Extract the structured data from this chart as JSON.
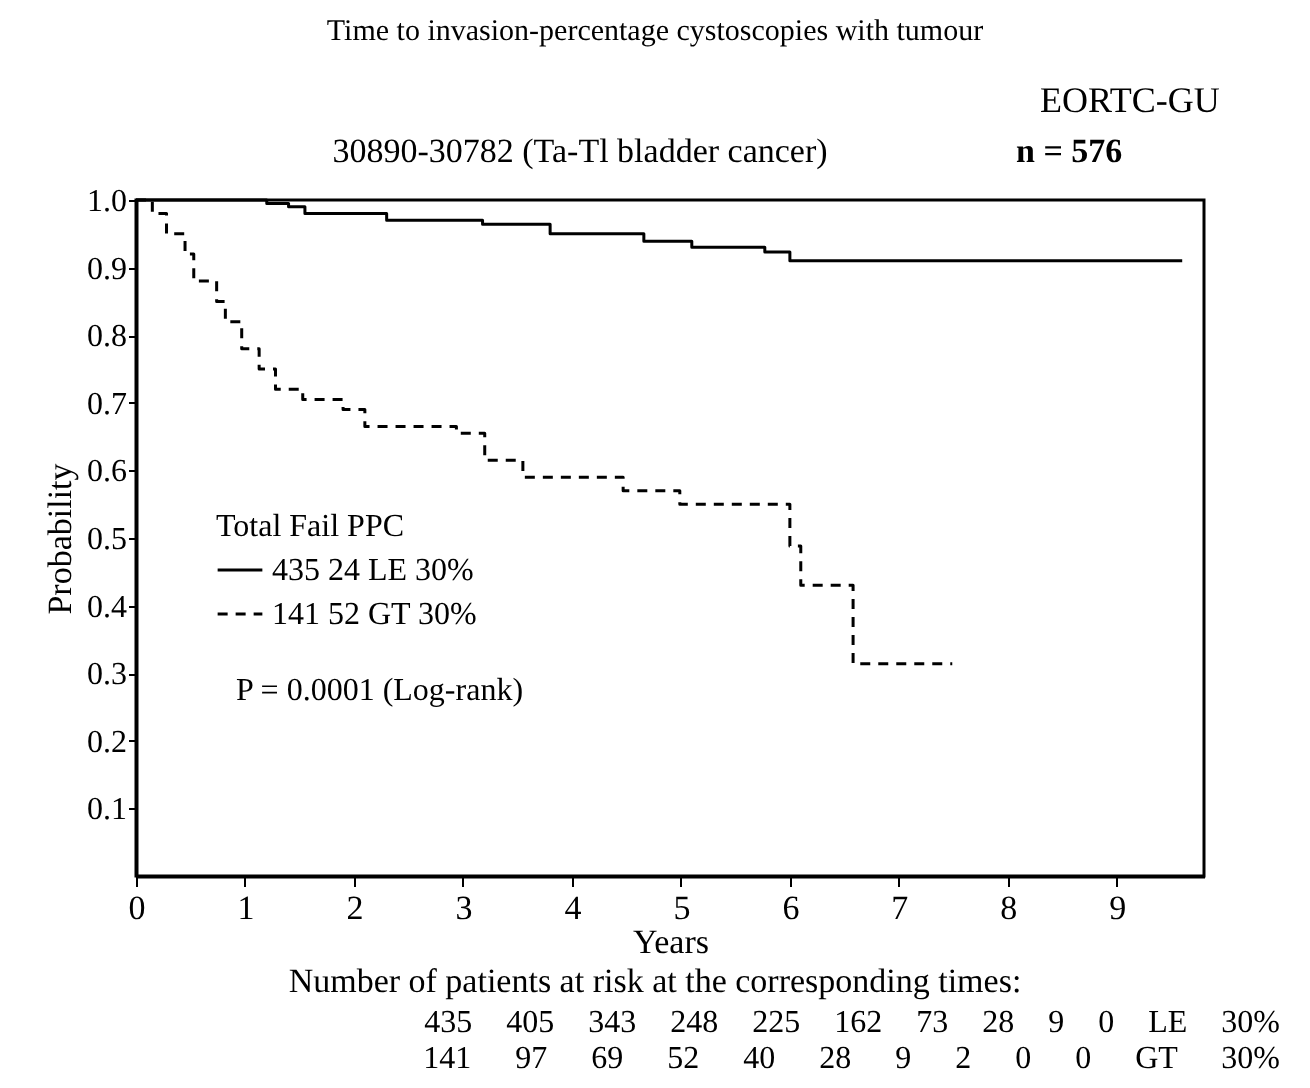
{
  "chart_data": {
    "type": "step",
    "title": "Time to invasion-percentage cystoscopies with tumour",
    "subtitle": "30890-30782 (Ta-Tl bladder cancer)",
    "xlabel": "Years",
    "ylabel": "Probability",
    "legend_title": "Total  Fail   PPC",
    "legend": "bottom left",
    "marker": "none",
    "grid": false,
    "xlim": [
      0,
      9.8
    ],
    "xticks": [
      0,
      1,
      2,
      3,
      4,
      5,
      6,
      7,
      8,
      9
    ],
    "ylim": [
      0,
      1
    ],
    "yticks": [
      {
        "value": 0.1,
        "label": "0.1"
      },
      {
        "value": 0.2,
        "label": "0.2"
      },
      {
        "value": 0.3,
        "label": "0.3"
      },
      {
        "value": 0.4,
        "label": "0.4"
      },
      {
        "value": 0.5,
        "label": "0.5"
      },
      {
        "value": 0.6,
        "label": "0.6"
      },
      {
        "value": 0.7,
        "label": "0.7"
      },
      {
        "value": 0.8,
        "label": "0.8"
      },
      {
        "value": 0.9,
        "label": "0.9"
      },
      {
        "value": 1,
        "label": "1.0"
      }
    ],
    "series": [
      {
        "name": "435   24   LE 30%",
        "color": "#000000",
        "line_style": "solid",
        "x": [
          0,
          1.2,
          1.4,
          1.55,
          2.3,
          3.18,
          3.8,
          4.66,
          5.1,
          5.77,
          6.0,
          9.6
        ],
        "values": [
          1,
          0.995,
          0.99,
          0.98,
          0.97,
          0.964,
          0.95,
          0.939,
          0.93,
          0.923,
          0.91,
          0.91
        ]
      },
      {
        "name": "141   52   GT 30%",
        "color": "#000000",
        "line_style": "dashed",
        "x": [
          0,
          0.15,
          0.28,
          0.45,
          0.53,
          0.74,
          0.82,
          0.97,
          1.13,
          1.28,
          1.53,
          1.9,
          2.1,
          2.94,
          3.2,
          3.55,
          4.47,
          4.99,
          6.0,
          6.1,
          6.58,
          7.49
        ],
        "values": [
          1,
          0.98,
          0.95,
          0.92,
          0.88,
          0.85,
          0.82,
          0.78,
          0.75,
          0.72,
          0.705,
          0.69,
          0.665,
          0.655,
          0.615,
          0.59,
          0.57,
          0.55,
          0.488,
          0.43,
          0.314,
          0.314
        ]
      }
    ],
    "annotations": [
      "EORTC-GU",
      "n = 576",
      "P = 0.0001 (Log-rank)",
      "Number of patients at risk at the corresponding times:",
      "435 405 343 248 225 162 73 28 9 0 LE 30%",
      "141 97 69 52 40 28 9 2 0 0 GT 30%"
    ]
  }
}
